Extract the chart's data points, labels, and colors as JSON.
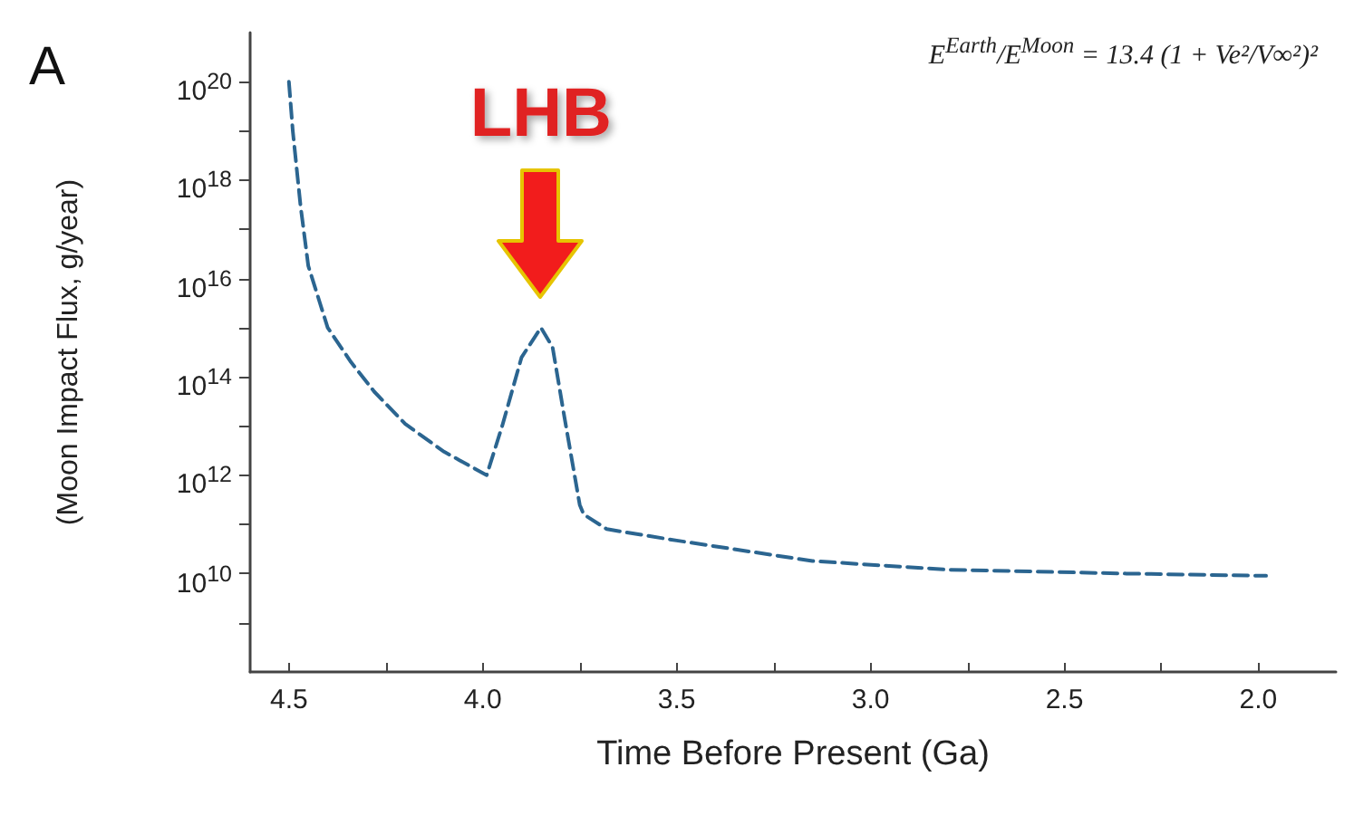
{
  "chart_data": {
    "type": "line",
    "xlabel": "Time Before Present (Ga)",
    "ylabel": "(Moon Impact Flux, g/year)",
    "annotations": [
      "A",
      {
        "text": "LHB",
        "x": 3.85,
        "y": 1000000000000000.0
      },
      "E$^{Earth}$/E$^{Moon}$ = 13.4 (1 + Ve²/V∞²)²"
    ],
    "x": [
      4.5,
      4.49,
      4.47,
      4.45,
      4.4,
      4.34,
      4.28,
      4.2,
      4.1,
      3.99,
      3.95,
      3.9,
      3.85,
      3.82,
      3.79,
      3.75,
      3.74,
      3.68,
      3.5,
      3.15,
      2.8,
      2.34,
      1.98
    ],
    "series": [
      {
        "color": "#2b6590",
        "values": [
          1e+20,
          1e+19,
          3e+17,
          1.8e+16,
          1000000000000000.0,
          200000000000000.0,
          50000000000000.0,
          11000000000000.0,
          3000000000000.0,
          1000000000000.0,
          10000000000000.0,
          250000000000000.0,
          1000000000000000.0,
          400000000000000.0,
          16000000000000.0,
          250000000000.0,
          160000000000.0,
          80000000000.0,
          47000000000.0,
          18000000000.0,
          12000000000.0,
          10000000000.0,
          9000000000.0
        ]
      }
    ],
    "log": "y",
    "xlim": [
      4.6,
      1.8
    ],
    "xticks": [
      4.5,
      {
        "value": 4.25,
        "label": null
      },
      {
        "value": 4,
        "label": "4.0"
      },
      {
        "value": 3.75,
        "label": null
      },
      3.5,
      {
        "value": 3.25,
        "label": null
      },
      {
        "value": 3,
        "label": "3.0"
      },
      {
        "value": 2.75,
        "label": null
      },
      2.5,
      {
        "value": 2.25,
        "label": null
      },
      {
        "value": 2,
        "label": "2.0"
      }
    ],
    "ylim": [
      100000000.0,
      1e+21
    ],
    "yticks": [
      {
        "value": 1000000000.0,
        "label": null
      },
      {
        "value": 10000000000.0,
        "label": "10$^{10}$"
      },
      {
        "value": 100000000000.0,
        "label": null
      },
      {
        "value": 1000000000000.0,
        "label": "10$^{12}$"
      },
      {
        "value": 10000000000000.0,
        "label": null
      },
      {
        "value": 100000000000000.0,
        "label": "10$^{14}$"
      },
      {
        "value": 1000000000000000.0,
        "label": null
      },
      {
        "value": 1e+16,
        "label": "10$^{16}$"
      },
      {
        "value": 1e+17,
        "label": null
      },
      {
        "value": 1e+18,
        "label": "10$^{18}$"
      },
      {
        "value": 1e+19,
        "label": null
      },
      {
        "value": 1e+20,
        "label": "10$^{20}$"
      }
    ],
    "grid": false,
    "marker": "none",
    "line_style": "dashed"
  }
}
